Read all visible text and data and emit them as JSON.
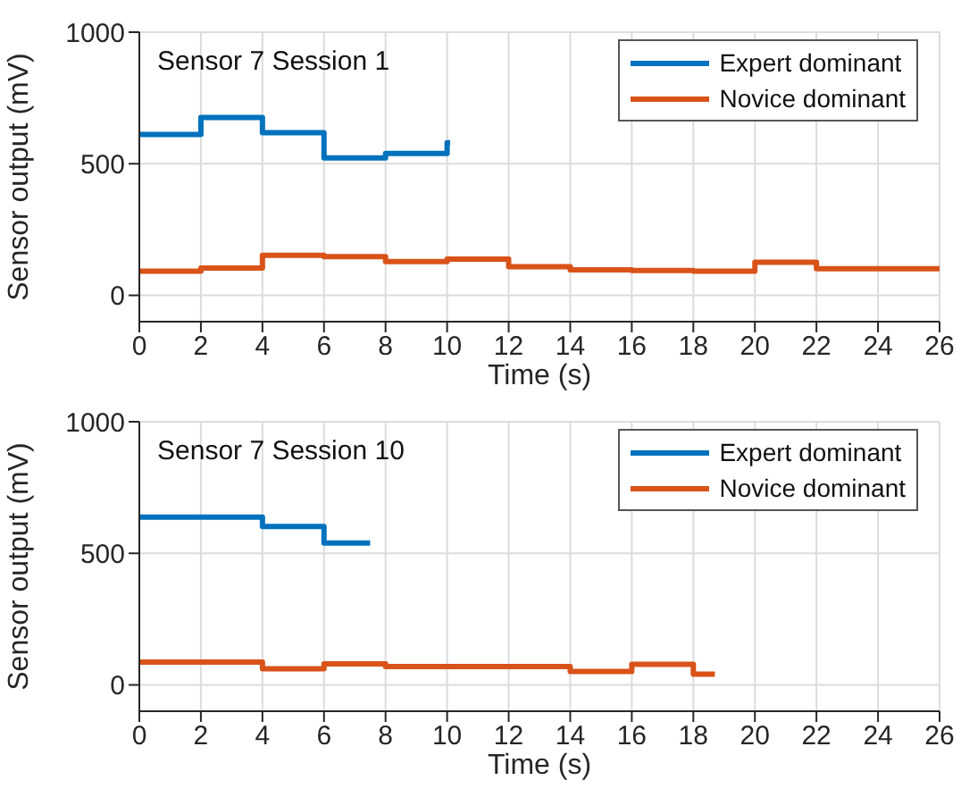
{
  "chart_data": [
    {
      "type": "step",
      "title": "Sensor 7 Session 1",
      "xlabel": "Time (s)",
      "ylabel": "Sensor output (mV)",
      "xlim": [
        0,
        26
      ],
      "xticks": [
        0,
        2,
        4,
        6,
        8,
        10,
        12,
        14,
        16,
        18,
        20,
        22,
        24,
        26
      ],
      "ylim": [
        -100,
        1000
      ],
      "yticks": [
        0,
        500,
        1000
      ],
      "grid": true,
      "legend": "top right",
      "series": [
        {
          "name": "Expert dominant",
          "color": "#0072bd",
          "x": [
            0,
            2,
            4,
            6,
            8,
            10,
            10.1
          ],
          "values": [
            611,
            676,
            618,
            522,
            539,
            580,
            580
          ]
        },
        {
          "name": "Novice dominant",
          "color": "#d95319",
          "x": [
            0,
            2,
            4,
            6,
            8,
            10,
            12,
            14,
            16,
            18,
            20,
            22,
            26
          ],
          "values": [
            92,
            104,
            152,
            147,
            128,
            138,
            109,
            97,
            94,
            92,
            126,
            101,
            101
          ]
        }
      ]
    },
    {
      "type": "step",
      "title": "Sensor 7 Session 10",
      "xlabel": "Time (s)",
      "ylabel": "Sensor output (mV)",
      "xlim": [
        0,
        26
      ],
      "xticks": [
        0,
        2,
        4,
        6,
        8,
        10,
        12,
        14,
        16,
        18,
        20,
        22,
        24,
        26
      ],
      "ylim": [
        -100,
        1000
      ],
      "yticks": [
        0,
        500,
        1000
      ],
      "grid": true,
      "legend": "top right",
      "series": [
        {
          "name": "Expert dominant",
          "color": "#0072bd",
          "x": [
            0,
            4,
            6,
            7.5
          ],
          "values": [
            638,
            602,
            539,
            539
          ]
        },
        {
          "name": "Novice dominant",
          "color": "#d95319",
          "x": [
            0,
            4,
            6,
            8,
            14,
            16,
            18,
            18.7
          ],
          "values": [
            87,
            61,
            80,
            70,
            51,
            78,
            41,
            41
          ]
        }
      ]
    }
  ]
}
